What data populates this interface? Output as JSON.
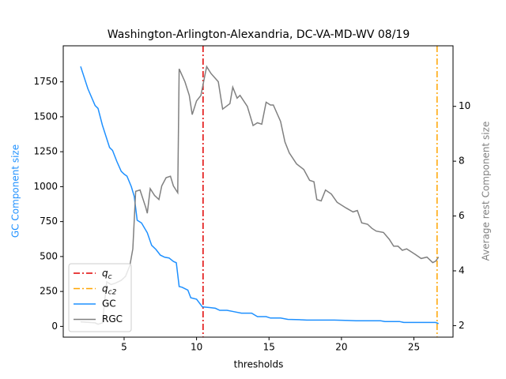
{
  "chart_data": {
    "type": "line",
    "title": "Washington-Arlington-Alexandria, DC-VA-MD-WV 08/19",
    "xlabel": "thresholds",
    "ylabel": "GC Component size",
    "y2label": "Average rest Component size",
    "xlim": [
      0.8,
      27.7
    ],
    "ylim": [
      -77,
      2008
    ],
    "y2lim": [
      1.58,
      12.21
    ],
    "xticks": [
      5,
      10,
      15,
      20,
      25
    ],
    "yticks": [
      0,
      250,
      500,
      750,
      1000,
      1250,
      1500,
      1750
    ],
    "y2ticks": [
      2,
      4,
      6,
      8,
      10
    ],
    "ylabel_color": "#1e90ff",
    "y2label_color": "#808080",
    "legend": "lower left",
    "vlines": [
      {
        "symbol": "q",
        "subscript": "c",
        "x": 10.45,
        "color": "#e00000"
      },
      {
        "symbol": "q",
        "subscript": "c2",
        "x": 26.6,
        "color": "#ffa500"
      }
    ],
    "series": [
      {
        "name": "GC",
        "color": "#1e90ff",
        "x": [
          2,
          2.5,
          3,
          3.2,
          3.5,
          4,
          4.2,
          4.5,
          4.8,
          5,
          5.2,
          5.5,
          5.7,
          5.9,
          6.2,
          6.6,
          6.9,
          7.2,
          7.5,
          7.8,
          8.1,
          8.4,
          8.6,
          8.8,
          9.0,
          9.4,
          9.6,
          10.0,
          10.4,
          10.9,
          11.3,
          11.6,
          12.1,
          12.6,
          13.1,
          13.8,
          14.2,
          14.8,
          15.1,
          15.8,
          16.3,
          17.1,
          17.6,
          18.2,
          19.5,
          20.5,
          21,
          22.7,
          23,
          24,
          24.3,
          26.5,
          26.7
        ],
        "values": [
          1860,
          1700,
          1580,
          1560,
          1440,
          1280,
          1260,
          1180,
          1110,
          1090,
          1075,
          1000,
          930,
          760,
          740,
          670,
          580,
          550,
          510,
          495,
          490,
          465,
          455,
          285,
          280,
          260,
          205,
          195,
          140,
          135,
          130,
          115,
          115,
          105,
          95,
          95,
          70,
          70,
          60,
          60,
          50,
          48,
          45,
          45,
          45,
          42,
          40,
          40,
          35,
          35,
          28,
          28,
          20
        ]
      },
      {
        "name": "RGC",
        "color": "#808080",
        "axis": "y2",
        "x": [
          2,
          2.5,
          3,
          3.2,
          3.5,
          3.8,
          4.1,
          4.4,
          4.8,
          5.1,
          5.4,
          5.6,
          5.8,
          6.1,
          6.5,
          6.6,
          6.8,
          7.1,
          7.4,
          7.6,
          7.9,
          8.2,
          8.4,
          8.7,
          8.8,
          9.2,
          9.5,
          9.7,
          10.0,
          10.3,
          10.6,
          10.7,
          11.0,
          11.5,
          11.8,
          12.3,
          12.5,
          12.8,
          13.0,
          13.5,
          13.9,
          14.2,
          14.5,
          14.8,
          15.1,
          15.3,
          15.8,
          16.1,
          16.4,
          16.9,
          17.4,
          17.8,
          18.1,
          18.3,
          18.6,
          18.9,
          19.3,
          19.7,
          20.3,
          20.8,
          21.1,
          21.4,
          21.8,
          22.1,
          22.4,
          22.9,
          23.3,
          23.6,
          23.9,
          24.2,
          24.5,
          24.8,
          25.1,
          25.5,
          25.9,
          26.3,
          26.5,
          26.7
        ],
        "values": [
          2.14,
          2.12,
          2.1,
          2.05,
          2.1,
          3.6,
          3.5,
          3.55,
          3.65,
          3.8,
          4.2,
          4.8,
          6.9,
          6.95,
          6.3,
          6.1,
          7.0,
          6.75,
          6.6,
          7.1,
          7.4,
          7.45,
          7.1,
          6.85,
          11.37,
          10.9,
          10.4,
          9.7,
          10.2,
          10.4,
          11.2,
          11.45,
          11.2,
          10.9,
          9.9,
          10.1,
          10.7,
          10.3,
          10.4,
          10.0,
          9.3,
          9.4,
          9.35,
          10.15,
          10.05,
          10.05,
          9.45,
          8.7,
          8.3,
          7.9,
          7.7,
          7.3,
          7.25,
          6.6,
          6.55,
          6.95,
          6.8,
          6.5,
          6.3,
          6.15,
          6.2,
          5.75,
          5.7,
          5.55,
          5.45,
          5.4,
          5.15,
          4.9,
          4.9,
          4.75,
          4.8,
          4.7,
          4.6,
          4.45,
          4.5,
          4.3,
          4.35,
          4.5
        ]
      }
    ]
  }
}
